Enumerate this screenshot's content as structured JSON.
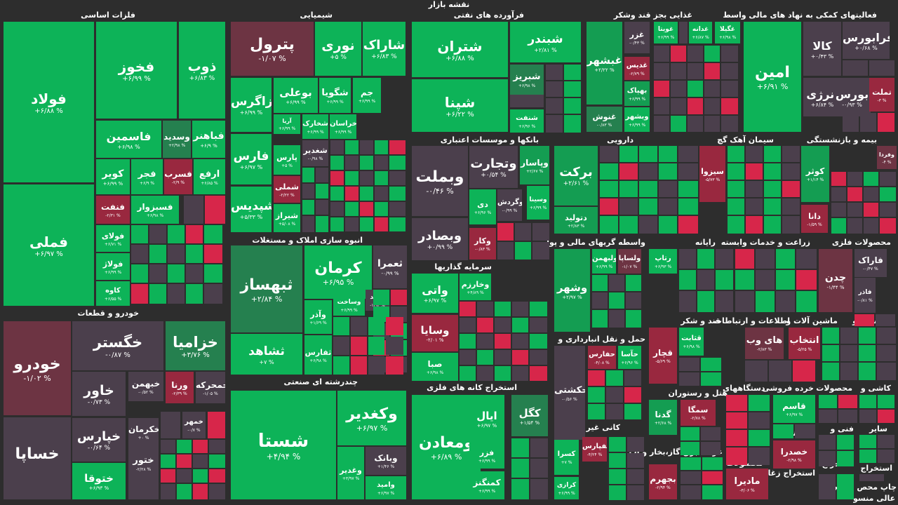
{
  "title": "نقشه بازار",
  "colors": {
    "background": "#2d2d2d",
    "g1": "#0db358",
    "g2": "#149d52",
    "g3": "#25804f",
    "n": "#4b3f4c",
    "r1": "#6d3443",
    "r2": "#99283f",
    "r3": "#d7264a"
  },
  "sections": [
    "فلزات اساسی",
    "شیمیایی",
    "فرآورده های نفتی",
    "غذایی بجز قند وشکر",
    "فعالیتهای کمکی به نهاد های مالی واسط",
    "بانکها و موسسات اعتباری",
    "دارویی",
    "سیمان آهک گچ",
    "بیمه و بازنشستگی",
    "خودرو و قطعات",
    "انبوه سازی املاک و مستغلات",
    "سرمایه گذاریها",
    "واسطه گریهای مالی و پولی",
    "رایانه",
    "زراعت و خدمات وابسته",
    "محصولات فلزی",
    "قند و شکر",
    "اطلاعات و ارتباطات",
    "ماشین آلات و",
    "لاستیک و",
    "حمل و نقل انبارداری و",
    "چندرشته ای صنعتی",
    "استخراج کانه های فلزی",
    "هتل و رستوران",
    "دستگاههای",
    "خرده فروشی",
    "محصولات",
    "کاشی و",
    "کانی غیر فلزی",
    "پیمانکاری",
    "فنی و",
    "سایر",
    "عرضه برق،گاز،بخار و آب",
    "محصولات",
    "استخراج زغال",
    "استخراج",
    "مخابرا",
    "استخراج",
    "چاپ محص",
    "عالی منسو"
  ],
  "tiles": [
    {
      "name": "فولاد",
      "pct": "+۶/۸۸ %"
    },
    {
      "name": "فملی",
      "pct": "+۶/۹۷ %"
    },
    {
      "name": "فخوز",
      "pct": "+۶/۹۹ %"
    },
    {
      "name": "ذوب",
      "pct": "+۶/۸۳ %"
    },
    {
      "name": "فاسمین",
      "pct": "+۶/۹۸ %"
    },
    {
      "name": "وسدید",
      "pct": "+۲/۹۸ %"
    },
    {
      "name": "فباهنر",
      "pct": "+۶/۹ %"
    },
    {
      "name": "کویر",
      "pct": "+۶/۹۹ %"
    },
    {
      "name": "فجر",
      "pct": "+۶/۹ %"
    },
    {
      "name": "فسرب",
      "pct": "-۲/۹ %"
    },
    {
      "name": "ارفع",
      "pct": "+۶/۸۵ %"
    },
    {
      "name": "فنفت",
      "pct": "-۲/۳۱ %"
    },
    {
      "name": "فسبزوار",
      "pct": "+۶/۹۸ %"
    },
    {
      "name": "فولای",
      "pct": "+۶/۷۱ %"
    },
    {
      "name": "فولاژ",
      "pct": "+۶/۹۹ %"
    },
    {
      "name": "کاوه",
      "pct": "+۶/۵۵ %"
    },
    {
      "name": "پترول",
      "pct": "-۱/۰۷ %"
    },
    {
      "name": "نوری",
      "pct": "+۵ %"
    },
    {
      "name": "شاراک",
      "pct": "+۶/۸۳ %"
    },
    {
      "name": "زاگرس",
      "pct": "+۶/۹۹ %"
    },
    {
      "name": "بوعلی",
      "pct": "+۶/۹۹ %"
    },
    {
      "name": "شگویا",
      "pct": "+۶/۹۹ %"
    },
    {
      "name": "جم",
      "pct": "+۶/۹۹ %"
    },
    {
      "name": "آریا",
      "pct": "+۶/۹۹ %"
    },
    {
      "name": "شخارک",
      "pct": "+۶/۹۹ %"
    },
    {
      "name": "خراسان",
      "pct": "+۶/۹۹ %"
    },
    {
      "name": "فارس",
      "pct": "+۶/۹۷ %"
    },
    {
      "name": "پارس",
      "pct": "+۵ %"
    },
    {
      "name": "شغدیر",
      "pct": "-۰/۹۸ %"
    },
    {
      "name": "شملی",
      "pct": "-۲/۲۲ %"
    },
    {
      "name": "شپدیس",
      "pct": "+۵/۳۳ %"
    },
    {
      "name": "شیراز",
      "pct": "+۵/۰۸ %"
    },
    {
      "name": "شتران",
      "pct": "+۶/۸۸ %"
    },
    {
      "name": "شپنا",
      "pct": "+۶/۲۲ %"
    },
    {
      "name": "شبندر",
      "pct": "+۲/۸۱ %"
    },
    {
      "name": "شبریز",
      "pct": "+۶/۹۸ %"
    },
    {
      "name": "شنفت",
      "pct": "+۶/۹۶ %"
    },
    {
      "name": "غبشهر",
      "pct": "+۲/۲۲ %"
    },
    {
      "name": "غنوش",
      "pct": "-۰/۸۳ %"
    },
    {
      "name": "غزر",
      "pct": "-۰/۴۳ %"
    },
    {
      "name": "غدیس",
      "pct": "-۲/۷۹ %"
    },
    {
      "name": "بهپاک",
      "pct": "+۶/۹۹ %"
    },
    {
      "name": "وبشهر",
      "pct": "+۶/۹۹ %"
    },
    {
      "name": "غویتا",
      "pct": "+۶/۹۹ %"
    },
    {
      "name": "غدانه",
      "pct": "+۶/۸۷ %"
    },
    {
      "name": "غگیلا",
      "pct": "+۶/۹۸ %"
    },
    {
      "name": "امین",
      "pct": "+۶/۹۱ %"
    },
    {
      "name": "کالا",
      "pct": "+۰/۴۳ %"
    },
    {
      "name": "فرابورس",
      "pct": "+۰/۶۸ %"
    },
    {
      "name": "انرژی",
      "pct": "+۶/۸۴ %"
    },
    {
      "name": "بورس",
      "pct": "-۰/۹۳ %"
    },
    {
      "name": "تملت",
      "pct": "-۳ %"
    },
    {
      "name": "وبملت",
      "pct": "-۰/۴۶ %"
    },
    {
      "name": "وتجارت",
      "pct": "+۰/۵۴ %"
    },
    {
      "name": "وپاسار",
      "pct": "+۲/۶۷ %"
    },
    {
      "name": "دی",
      "pct": "+۶/۹۶ %"
    },
    {
      "name": "وگردش",
      "pct": "-۰/۹۹ %"
    },
    {
      "name": "وسینا",
      "pct": "+۶/۹۹ %"
    },
    {
      "name": "وبصادر",
      "pct": "+۰/۹۹ %"
    },
    {
      "name": "وکار",
      "pct": "-۰/۸۳ %"
    },
    {
      "name": "برکت",
      "pct": "+۲/۶۱ %"
    },
    {
      "name": "دتولید",
      "pct": "+۲/۸۳ %"
    },
    {
      "name": "سیزوا",
      "pct": "-۵/۷۳ %"
    },
    {
      "name": "کوثر",
      "pct": "+۱/۱۴ %"
    },
    {
      "name": "وفردا",
      "pct": "-۴ %"
    },
    {
      "name": "دانا",
      "pct": "-۱/۵۹ %"
    },
    {
      "name": "خودرو",
      "pct": "-۱/۰۲ %"
    },
    {
      "name": "خساپا",
      "pct": "-۰/۲۷ %"
    },
    {
      "name": "خگستر",
      "pct": "-۰/۸۷ %"
    },
    {
      "name": "خزامیا",
      "pct": "+۳/۷۶ %"
    },
    {
      "name": "خاور",
      "pct": "-۰/۷۳ %"
    },
    {
      "name": "خبهمن",
      "pct": "-۰/۵۲ %"
    },
    {
      "name": "ورنا",
      "pct": "-۲/۳۹ %"
    },
    {
      "name": "خمحرکه",
      "pct": "-۱/۰۵ %"
    },
    {
      "name": "خپارس",
      "pct": "-۰/۶۴ %"
    },
    {
      "name": "خکرمان",
      "pct": "+۰ %"
    },
    {
      "name": "خمهر",
      "pct": "-۰/۷ %"
    },
    {
      "name": "ختوقا",
      "pct": "+۶/۹۳ %"
    },
    {
      "name": "ختور",
      "pct": "-۲/۲۸ %"
    },
    {
      "name": "ثبهساز",
      "pct": "+۲/۸۴ %"
    },
    {
      "name": "ثشاهد",
      "pct": "+۷ %"
    },
    {
      "name": "کرمان",
      "pct": "+۶/۹۵ %"
    },
    {
      "name": "ثعمرا",
      "pct": "-۰/۹۹ %"
    },
    {
      "name": "وآذر",
      "pct": "+۱/۶۹ %"
    },
    {
      "name": "وساخت",
      "pct": "+۶/۹۹ %"
    },
    {
      "name": "ثامید",
      "pct": "-۱/۹۳ %"
    },
    {
      "name": "ثفارس",
      "pct": "+۶/۹۸ %"
    },
    {
      "name": "شستا",
      "pct": "+۴/۹۴ %"
    },
    {
      "name": "وکغدیر",
      "pct": "+۶/۹۷ %"
    },
    {
      "name": "وبانک",
      "pct": "+۱/۴۶ %"
    },
    {
      "name": "وغدیر",
      "pct": "+۳/۹۷ %"
    },
    {
      "name": "وامید",
      "pct": "+۶/۹۷ %"
    },
    {
      "name": "واتی",
      "pct": "+۶/۹۷ %"
    },
    {
      "name": "وخارزم",
      "pct": "+۴/۸۹ %"
    },
    {
      "name": "وسایا",
      "pct": "-۲/۰۱ %"
    },
    {
      "name": "صبا",
      "pct": "+۶/۹۸ %"
    },
    {
      "name": "ومعادن",
      "pct": "+۶/۸۹ %"
    },
    {
      "name": "ایال",
      "pct": "+۶/۹۷ %"
    },
    {
      "name": "فزر",
      "pct": "+۶/۹۹ %"
    },
    {
      "name": "کمنگنز",
      "pct": "+۶/۹۹ %"
    },
    {
      "name": "کگل",
      "pct": "+۱/۵۴ %"
    },
    {
      "name": "وشهر",
      "pct": "+۲/۹۷ %"
    },
    {
      "name": "ولبهمن",
      "pct": "+۶/۹۹ %"
    },
    {
      "name": "ولساپا",
      "pct": "-۱/۰۷ %"
    },
    {
      "name": "رتاپ",
      "pct": "+۶/۹۳ %"
    },
    {
      "name": "حکشتی",
      "pct": "-۰/۵۶ %"
    },
    {
      "name": "حفارس",
      "pct": "-۴/۰۸ %"
    },
    {
      "name": "حآسا",
      "pct": "+۶/۹۶ %"
    },
    {
      "name": "قچار",
      "pct": "-۵/۶۹ %"
    },
    {
      "name": "قثابت",
      "pct": "+۶/۹۸ %"
    },
    {
      "name": "های وب",
      "pct": "-۲/۸۳ %"
    },
    {
      "name": "انتخاب",
      "pct": "-۵/۲۵ %"
    },
    {
      "name": "چدن",
      "pct": "-۱/۴۴ %"
    },
    {
      "name": "فاراک",
      "pct": "-۰/۴۷ %"
    },
    {
      "name": "فاذر",
      "pct": "-۰/۸۱ %"
    },
    {
      "name": "کسرا",
      "pct": "+۷ %"
    },
    {
      "name": "کفپارس",
      "pct": "-۴/۲۴ %"
    },
    {
      "name": "کرازی",
      "pct": "+۶/۹۹ %"
    },
    {
      "name": "سمگا",
      "pct": "-۲/۷۸ %"
    },
    {
      "name": "گدنا",
      "pct": "+۲/۶۸ %"
    },
    {
      "name": "بجهرم",
      "pct": "-۲/۹۴ %"
    },
    {
      "name": "قاسم",
      "pct": "+۶/۹۷ %"
    },
    {
      "name": "خصدرا",
      "pct": "-۲/۹۸ %"
    },
    {
      "name": "مادیرا",
      "pct": "-۳/۰۶ %"
    }
  ]
}
